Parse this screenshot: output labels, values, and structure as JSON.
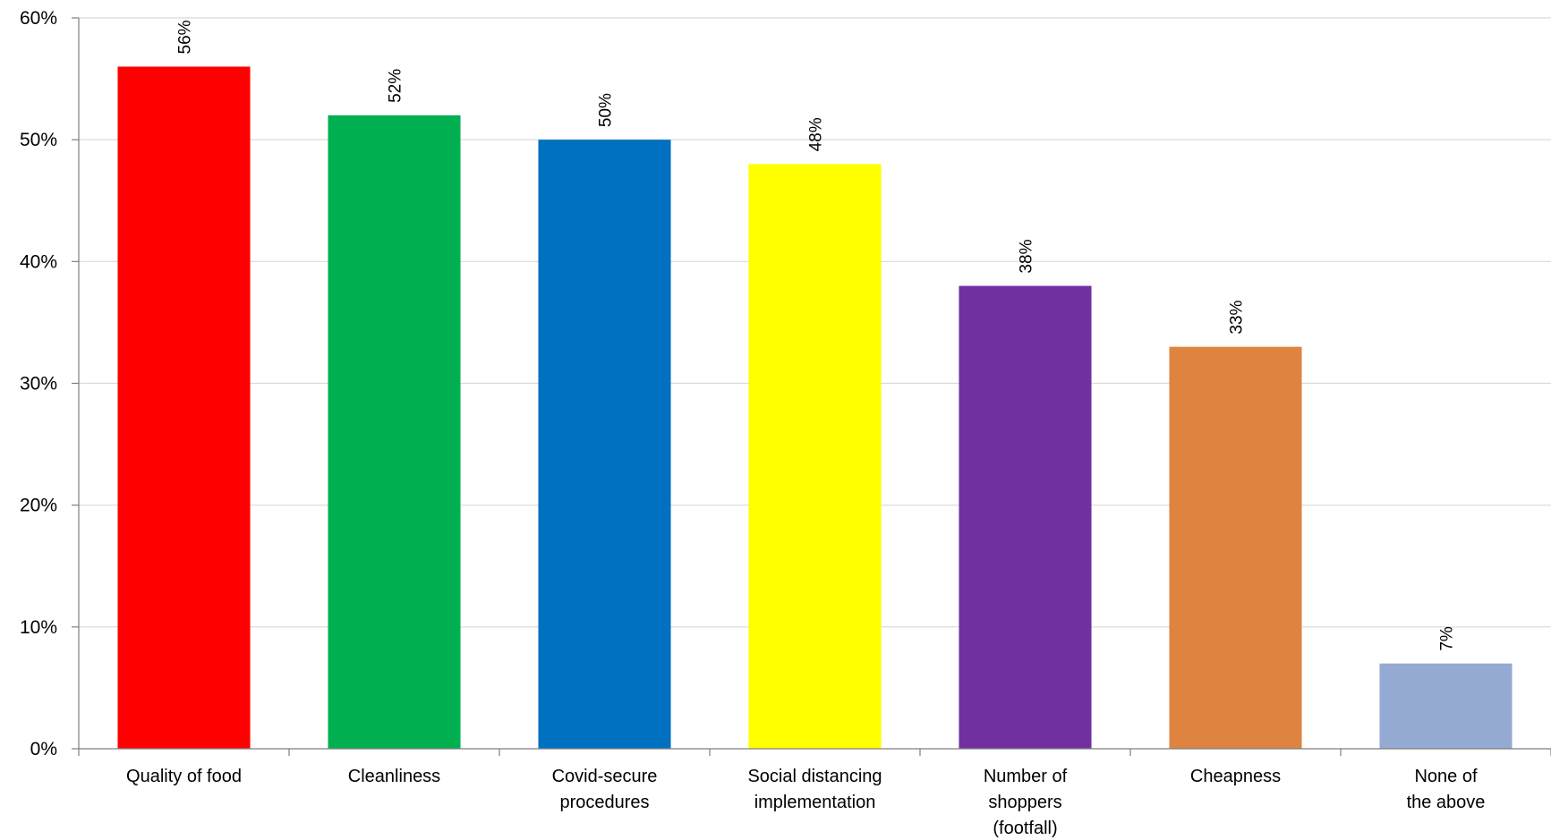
{
  "chart_data": {
    "type": "bar",
    "title": "",
    "xlabel": "",
    "ylabel": "",
    "ylim": [
      0,
      60
    ],
    "y_ticks": [
      "0%",
      "10%",
      "20%",
      "30%",
      "40%",
      "50%",
      "60%"
    ],
    "y_tick_values": [
      0,
      10,
      20,
      30,
      40,
      50,
      60
    ],
    "grid": true,
    "categories": [
      [
        "Quality of food"
      ],
      [
        "Cleanliness"
      ],
      [
        "Covid-secure",
        "procedures"
      ],
      [
        "Social distancing",
        "implementation"
      ],
      [
        "Number of",
        "shoppers",
        "(footfall)"
      ],
      [
        "Cheapness"
      ],
      [
        "None of",
        "the above"
      ]
    ],
    "values": [
      56,
      52,
      50,
      48,
      38,
      33,
      7
    ],
    "data_labels": [
      "56%",
      "52%",
      "50%",
      "48%",
      "38%",
      "33%",
      "7%"
    ],
    "colors": [
      "#FF0000",
      "#00B050",
      "#0070C0",
      "#FFFF00",
      "#7030A0",
      "#DE8440",
      "#95AAD2"
    ]
  }
}
